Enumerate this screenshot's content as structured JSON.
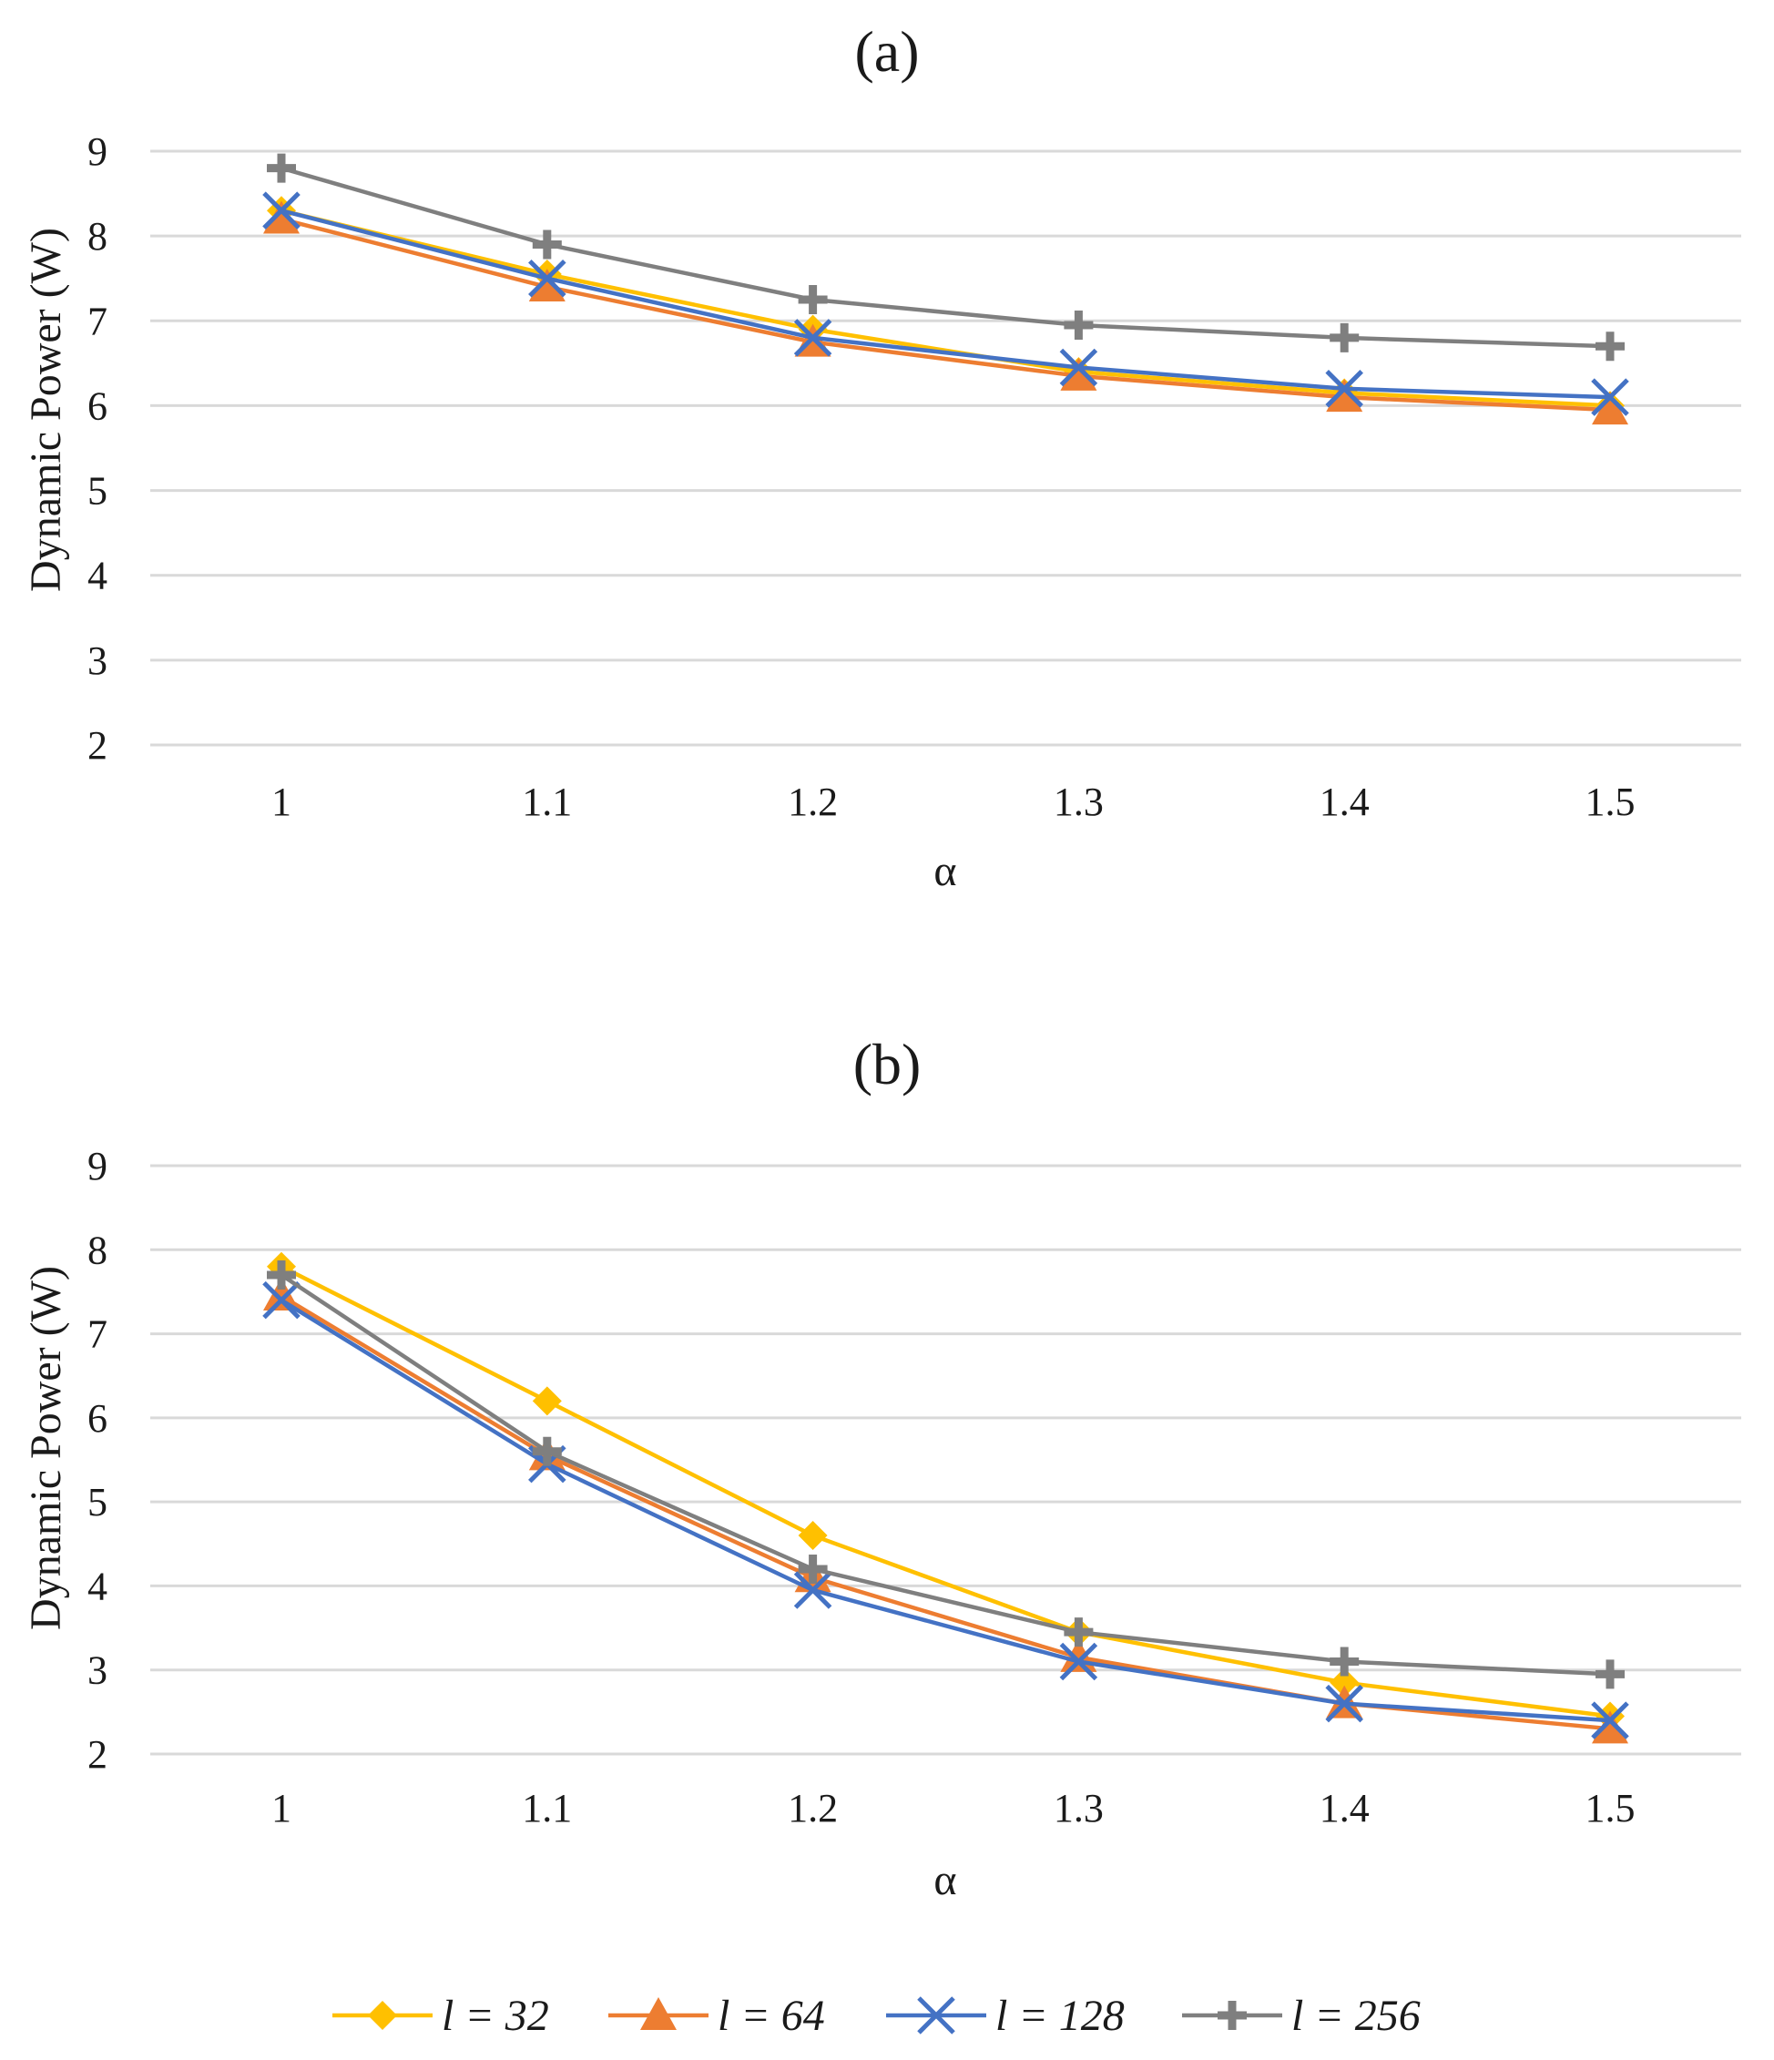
{
  "chart_data": [
    {
      "type": "line",
      "title": "(a)",
      "xlabel": "α",
      "ylabel": "Dynamic Power (W)",
      "categories": [
        "1",
        "1.1",
        "1.2",
        "1.3",
        "1.4",
        "1.5"
      ],
      "ylim": [
        2,
        9
      ],
      "yticks": [
        "2",
        "3",
        "4",
        "5",
        "6",
        "7",
        "8",
        "9"
      ],
      "grid": true,
      "series": [
        {
          "name": "l = 32",
          "values": [
            8.3,
            7.55,
            6.9,
            6.4,
            6.15,
            6.0
          ]
        },
        {
          "name": "l = 64",
          "values": [
            8.2,
            7.4,
            6.75,
            6.35,
            6.1,
            5.95
          ]
        },
        {
          "name": "l = 128",
          "values": [
            8.3,
            7.5,
            6.8,
            6.45,
            6.2,
            6.1
          ]
        },
        {
          "name": "l = 256",
          "values": [
            8.8,
            7.9,
            7.25,
            6.95,
            6.8,
            6.7
          ]
        }
      ]
    },
    {
      "type": "line",
      "title": "(b)",
      "xlabel": "α",
      "ylabel": "Dynamic Power (W)",
      "categories": [
        "1",
        "1.1",
        "1.2",
        "1.3",
        "1.4",
        "1.5"
      ],
      "ylim": [
        2,
        9
      ],
      "yticks": [
        "2",
        "3",
        "4",
        "5",
        "6",
        "7",
        "8",
        "9"
      ],
      "grid": true,
      "series": [
        {
          "name": "l = 32",
          "values": [
            7.8,
            6.2,
            4.6,
            3.45,
            2.85,
            2.45
          ]
        },
        {
          "name": "l = 64",
          "values": [
            7.45,
            5.55,
            4.1,
            3.15,
            2.6,
            2.3
          ]
        },
        {
          "name": "l = 128",
          "values": [
            7.4,
            5.45,
            3.95,
            3.1,
            2.6,
            2.4
          ]
        },
        {
          "name": "l = 256",
          "values": [
            7.7,
            5.6,
            4.2,
            3.45,
            3.1,
            2.95
          ]
        }
      ]
    }
  ],
  "legend": {
    "position": "bottom-center",
    "items": [
      {
        "label": "l = 32",
        "color": "#FFC000",
        "marker": "diamond"
      },
      {
        "label": "l = 64",
        "color": "#ED7D31",
        "marker": "triangle"
      },
      {
        "label": "l = 128",
        "color": "#4472C4",
        "marker": "x"
      },
      {
        "label": "l = 256",
        "color": "#7F7F7F",
        "marker": "plus"
      }
    ]
  },
  "colors": {
    "grid": "#d9d9d9",
    "text": "#1a1a1a"
  }
}
